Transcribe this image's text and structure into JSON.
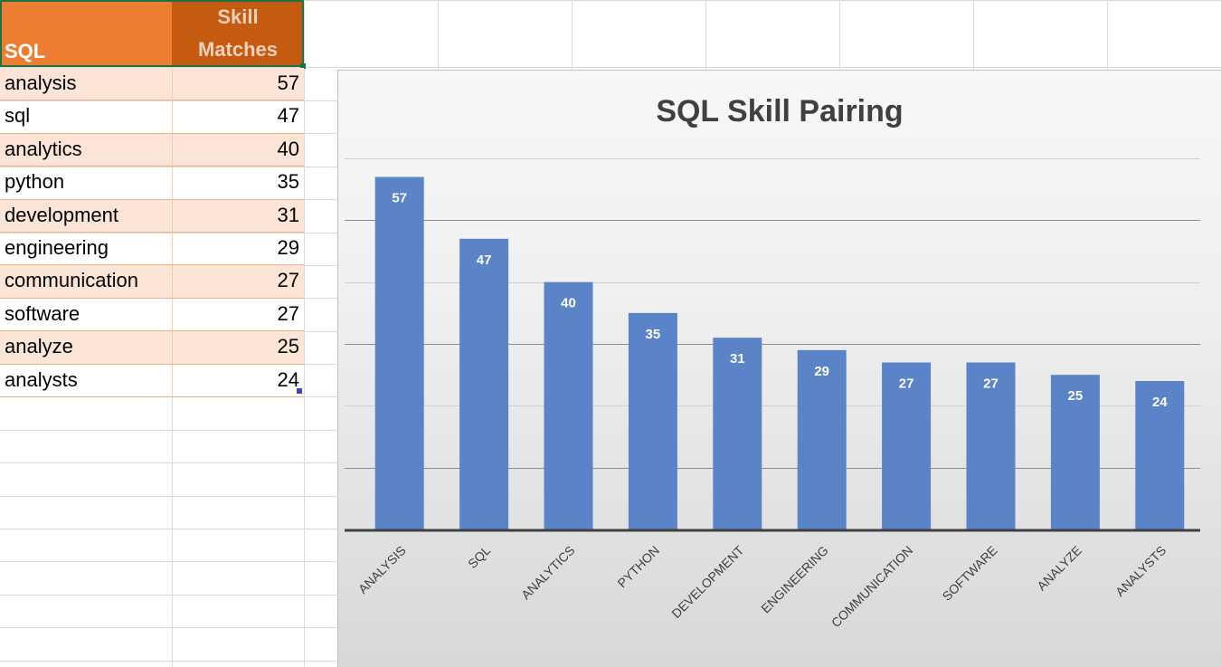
{
  "table": {
    "headers": {
      "col_a": "SQL",
      "col_b_line1": "Skill",
      "col_b_line2": "Matches"
    },
    "rows": [
      {
        "skill": "analysis",
        "count": "57"
      },
      {
        "skill": "sql",
        "count": "47"
      },
      {
        "skill": "analytics",
        "count": "40"
      },
      {
        "skill": "python",
        "count": "35"
      },
      {
        "skill": "development",
        "count": "31"
      },
      {
        "skill": "engineering",
        "count": "29"
      },
      {
        "skill": "communication",
        "count": "27"
      },
      {
        "skill": "software",
        "count": "27"
      },
      {
        "skill": "analyze",
        "count": "25"
      },
      {
        "skill": "analysts",
        "count": "24"
      }
    ]
  },
  "colors": {
    "header_orange": "#ed7d31",
    "header_dark_orange": "#c55a11",
    "band_fill": "#fce4d6",
    "bar_fill": "#5b84c8",
    "selection_green": "#1e7145"
  },
  "chart_data": {
    "type": "bar",
    "title": "SQL Skill Pairing",
    "xlabel": "",
    "ylabel": "",
    "categories": [
      "ANALYSIS",
      "SQL",
      "ANALYTICS",
      "PYTHON",
      "DEVELOPMENT",
      "ENGINEERING",
      "COMMUNICATION",
      "SOFTWARE",
      "ANALYZE",
      "ANALYSTS"
    ],
    "values": [
      57,
      47,
      40,
      35,
      31,
      29,
      27,
      27,
      25,
      24
    ],
    "data_labels": [
      "57",
      "47",
      "40",
      "35",
      "31",
      "29",
      "27",
      "27",
      "25",
      "24"
    ],
    "ylim": [
      0,
      60
    ],
    "grid": true,
    "legend": "none"
  }
}
